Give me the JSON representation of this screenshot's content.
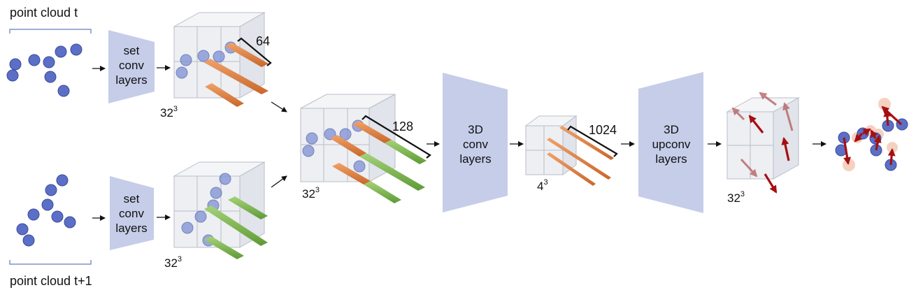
{
  "labels": {
    "point_cloud_t": "point cloud t",
    "point_cloud_t1": "point cloud t+1",
    "set_conv_top": [
      "set",
      "conv",
      "layers"
    ],
    "set_conv_bottom": [
      "set",
      "conv",
      "layers"
    ],
    "conv3d": [
      "3D",
      "conv",
      "layers"
    ],
    "upconv3d": [
      "3D",
      "upconv",
      "layers"
    ],
    "dim_64": "64",
    "dim_128": "128",
    "dim_1024": "1024",
    "grid_top_base": "32",
    "grid_bottom_base": "32",
    "grid_mid_base": "32",
    "grid_small_base": "4",
    "grid_out_base": "32",
    "exp": "3"
  },
  "colors": {
    "point": "#5b6fc6",
    "module": "#c5cde9",
    "feature_t": "#e0874a",
    "feature_t1": "#7fb552",
    "flow": "#a60f12",
    "halo": "#f3c9b5"
  },
  "icons": {
    "arrow": "right-arrow-icon",
    "flow_vector": "flow-arrow-icon"
  }
}
